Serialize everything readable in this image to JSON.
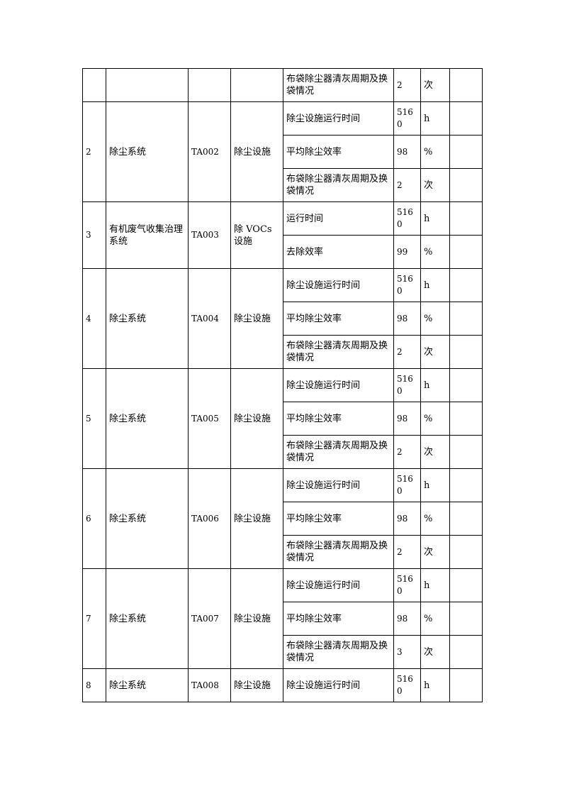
{
  "table": {
    "groups": [
      {
        "no": "",
        "system": "",
        "code": "",
        "facility": "",
        "items": [
          {
            "name": "布袋除尘器清灰周期及换袋情况",
            "value": "2",
            "unit": "次",
            "note": ""
          }
        ]
      },
      {
        "no": "2",
        "system": "除尘系统",
        "code": "TA002",
        "facility": "除尘设施",
        "items": [
          {
            "name": "除尘设施运行时间",
            "value": "5160",
            "unit": "h",
            "note": ""
          },
          {
            "name": "平均除尘效率",
            "value": "98",
            "unit": "%",
            "note": ""
          },
          {
            "name": "布袋除尘器清灰周期及换袋情况",
            "value": "2",
            "unit": "次",
            "note": ""
          }
        ]
      },
      {
        "no": "3",
        "system": "有机废气收集治理系统",
        "code": "TA003",
        "facility": "除 VOCs 设施",
        "items": [
          {
            "name": "运行时间",
            "value": "5160",
            "unit": "h",
            "note": ""
          },
          {
            "name": "去除效率",
            "value": "99",
            "unit": "%",
            "note": ""
          }
        ]
      },
      {
        "no": "4",
        "system": "除尘系统",
        "code": "TA004",
        "facility": "除尘设施",
        "items": [
          {
            "name": "除尘设施运行时间",
            "value": "5160",
            "unit": "h",
            "note": ""
          },
          {
            "name": "平均除尘效率",
            "value": "98",
            "unit": "%",
            "note": ""
          },
          {
            "name": "布袋除尘器清灰周期及换袋情况",
            "value": "2",
            "unit": "次",
            "note": ""
          }
        ]
      },
      {
        "no": "5",
        "system": "除尘系统",
        "code": "TA005",
        "facility": "除尘设施",
        "items": [
          {
            "name": "除尘设施运行时间",
            "value": "5160",
            "unit": "h",
            "note": ""
          },
          {
            "name": "平均除尘效率",
            "value": "98",
            "unit": "%",
            "note": ""
          },
          {
            "name": "布袋除尘器清灰周期及换袋情况",
            "value": "2",
            "unit": "次",
            "note": ""
          }
        ]
      },
      {
        "no": "6",
        "system": "除尘系统",
        "code": "TA006",
        "facility": "除尘设施",
        "items": [
          {
            "name": "除尘设施运行时间",
            "value": "5160",
            "unit": "h",
            "note": ""
          },
          {
            "name": "平均除尘效率",
            "value": "98",
            "unit": "%",
            "note": ""
          },
          {
            "name": "布袋除尘器清灰周期及换袋情况",
            "value": "2",
            "unit": "次",
            "note": ""
          }
        ]
      },
      {
        "no": "7",
        "system": "除尘系统",
        "code": "TA007",
        "facility": "除尘设施",
        "items": [
          {
            "name": "除尘设施运行时间",
            "value": "5160",
            "unit": "h",
            "note": ""
          },
          {
            "name": "平均除尘效率",
            "value": "98",
            "unit": "%",
            "note": ""
          },
          {
            "name": "布袋除尘器清灰周期及换袋情况",
            "value": "3",
            "unit": "次",
            "note": ""
          }
        ]
      },
      {
        "no": "8",
        "system": "除尘系统",
        "code": "TA008",
        "facility": "除尘设施",
        "items": [
          {
            "name": "除尘设施运行时间",
            "value": "5160",
            "unit": "h",
            "note": ""
          }
        ]
      }
    ]
  }
}
